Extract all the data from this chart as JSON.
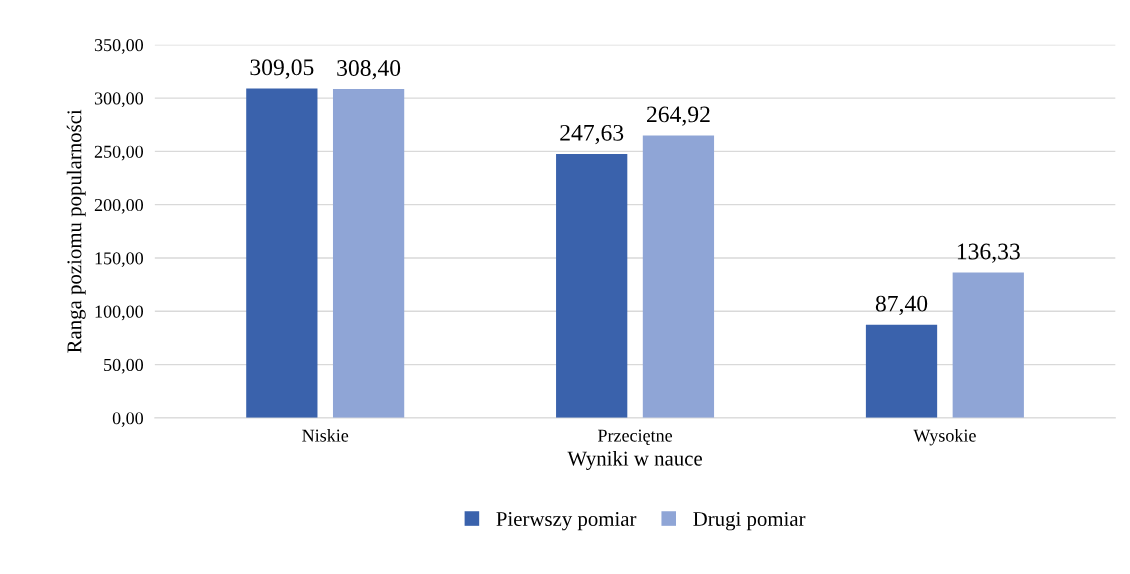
{
  "chart_data": {
    "type": "bar",
    "xlabel": "Wyniki w nauce",
    "ylabel": "Ranga poziomu popularności",
    "categories": [
      "Niskie",
      "Przeciętne",
      "Wysokie"
    ],
    "series": [
      {
        "name": "Pierwszy pomiar",
        "color": "#3a62ac",
        "values": [
          309.05,
          247.63,
          87.4
        ],
        "value_labels": [
          "309,05",
          "247,63",
          "87,40"
        ]
      },
      {
        "name": "Drugi pomiar",
        "color": "#8fa5d6",
        "values": [
          308.4,
          264.92,
          136.33
        ],
        "value_labels": [
          "308,40",
          "264,92",
          "136,33"
        ]
      }
    ],
    "ylim": [
      0,
      350
    ],
    "yticks": [
      {
        "value": 0,
        "label": "0,00"
      },
      {
        "value": 50,
        "label": "50,00"
      },
      {
        "value": 100,
        "label": "100,00"
      },
      {
        "value": 150,
        "label": "150,00"
      },
      {
        "value": 200,
        "label": "200,00"
      },
      {
        "value": 250,
        "label": "250,00"
      },
      {
        "value": 300,
        "label": "300,00"
      },
      {
        "value": 350,
        "label": "350,00"
      }
    ],
    "grid": "y",
    "legend": "bottom"
  }
}
